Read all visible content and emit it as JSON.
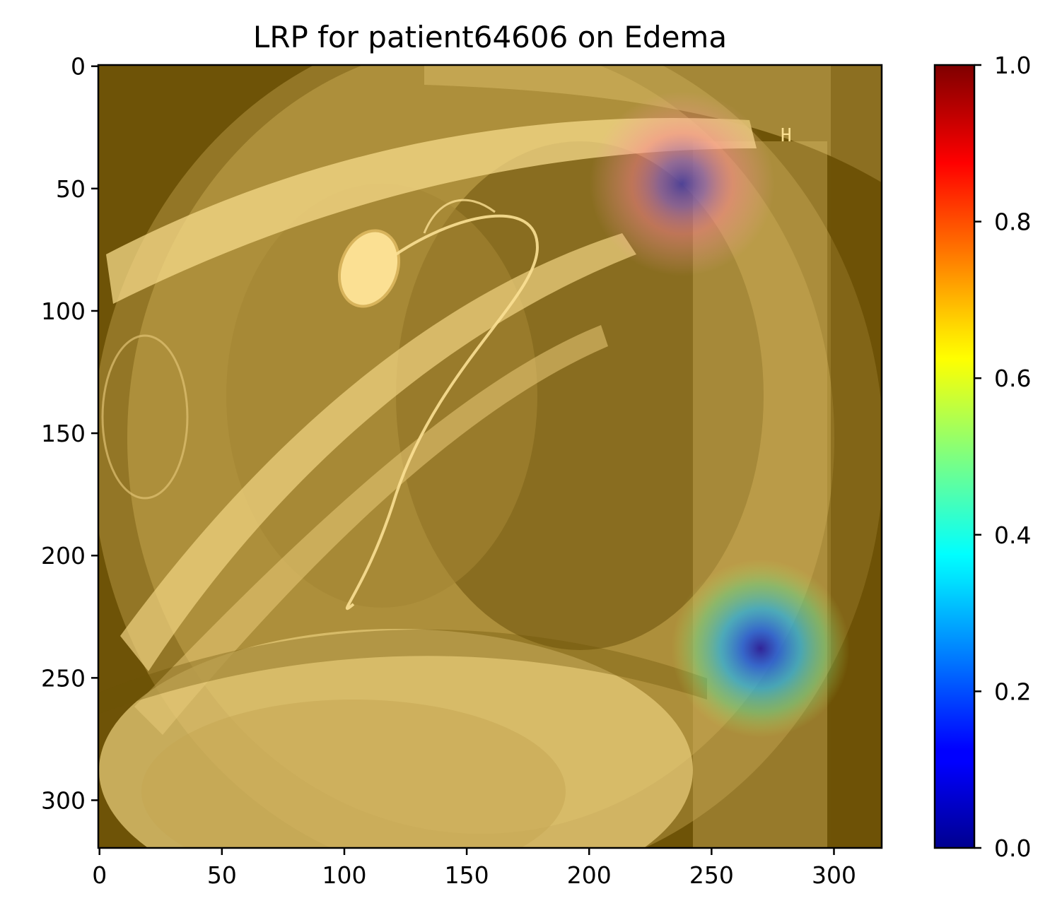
{
  "chart_data": {
    "type": "heatmap",
    "title": "LRP for patient64606 on Edema",
    "xlabel": "",
    "ylabel": "",
    "xlim": [
      -0.5,
      319.5
    ],
    "ylim": [
      319.5,
      -0.5
    ],
    "x_ticks": [
      0,
      50,
      100,
      150,
      200,
      250,
      300
    ],
    "y_ticks": [
      0,
      50,
      100,
      150,
      200,
      250,
      300
    ],
    "colorbar": {
      "colormap": "jet",
      "range": [
        0.0,
        1.0
      ],
      "ticks": [
        "0.0",
        "0.2",
        "0.4",
        "0.6",
        "0.8",
        "1.0"
      ]
    },
    "background_image": "lateral chest x-ray",
    "background_tint": "#fbe093",
    "image_overlay_text": "H",
    "relevance_regions": [
      {
        "label": "upper hotspot",
        "center": [
          238,
          48
        ],
        "radius": 28,
        "peak_value": 0.0
      },
      {
        "label": "lower hotspot",
        "center": [
          270,
          238
        ],
        "radius": 27,
        "peak_value": 0.0
      }
    ]
  }
}
